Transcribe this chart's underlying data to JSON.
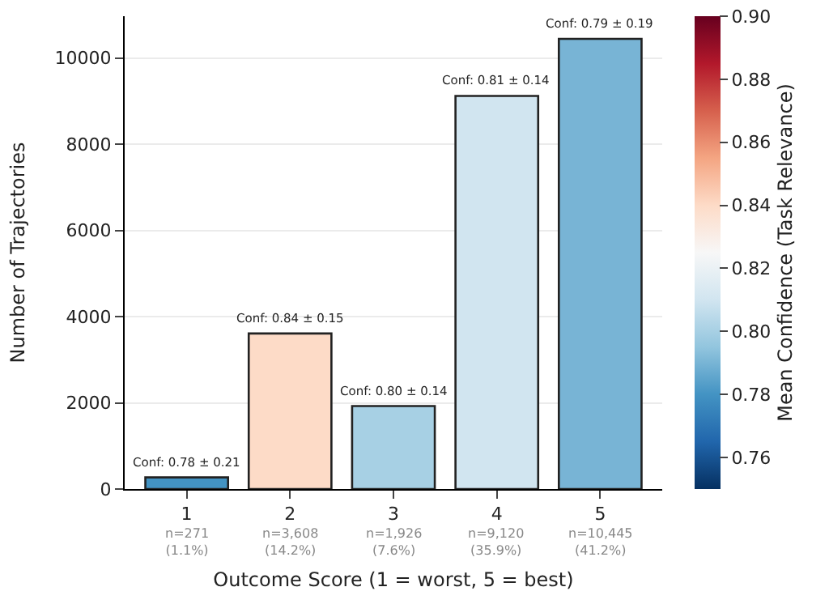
{
  "chart_data": {
    "type": "bar",
    "xlabel": "Outcome Score (1 = worst, 5 = best)",
    "ylabel": "Number of Trajectories",
    "clabel": "Mean Confidence (Task Relevance)",
    "categories": [
      "1",
      "2",
      "3",
      "4",
      "5"
    ],
    "values": [
      271,
      3608,
      1926,
      9120,
      10445
    ],
    "cvalues": [
      0.78,
      0.84,
      0.8,
      0.81,
      0.79
    ],
    "value_labels": [
      "n=271\n(1.1%)",
      "n=3,608\n(14.2%)",
      "n=1,926\n(7.6%)",
      "n=9,120\n(35.9%)",
      "n=10,445\n(41.2%)"
    ],
    "annotations": [
      {
        "text": "Conf: 0.78 ± 0.21",
        "x": "1",
        "y": 271
      },
      {
        "text": "Conf: 0.84 ± 0.15",
        "x": "2",
        "y": 3608
      },
      {
        "text": "Conf: 0.80 ± 0.14",
        "x": "3",
        "y": 1926
      },
      {
        "text": "Conf: 0.81 ± 0.14",
        "x": "4",
        "y": 9120
      },
      {
        "text": "Conf: 0.79 ± 0.19",
        "x": "5",
        "y": 10445
      }
    ],
    "ylim": [
      0,
      10970
    ],
    "yticks": [
      0,
      2000,
      4000,
      6000,
      8000,
      10000
    ],
    "clim": [
      0.75,
      0.9
    ],
    "cticks": [
      0.76,
      0.78,
      {
        "value": 0.8,
        "label": "0.80"
      },
      0.82,
      0.84,
      0.86,
      0.88,
      {
        "value": 0.9,
        "label": "0.90"
      }
    ],
    "grid": "y"
  }
}
